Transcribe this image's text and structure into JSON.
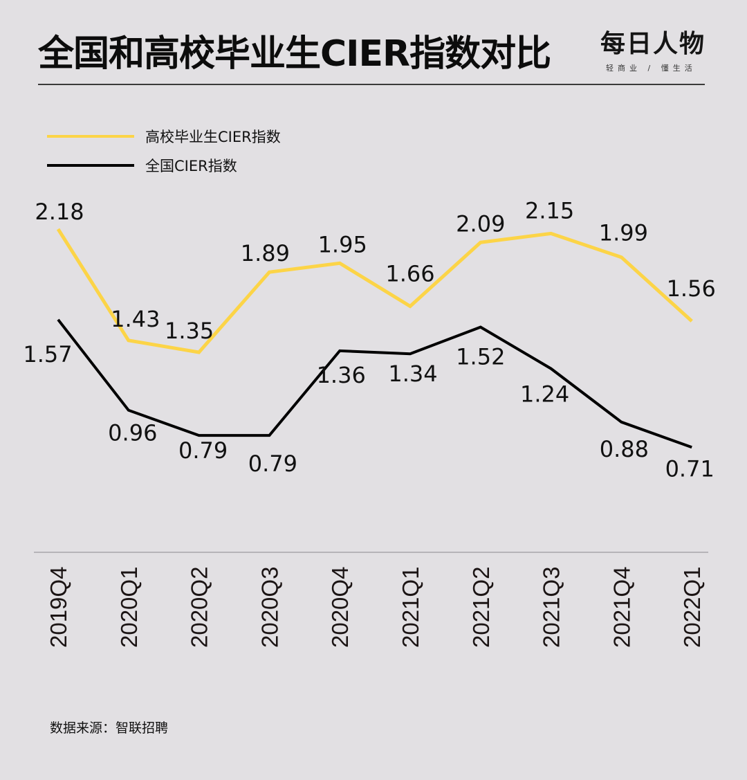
{
  "header": {
    "title": "全国和高校毕业生CIER指数对比",
    "logo_text": "每日人物",
    "logo_tagline": "轻商业 / 懂生活"
  },
  "legend": [
    {
      "label": "高校毕业生CIER指数",
      "color": "#fcd447"
    },
    {
      "label": "全国CIER指数",
      "color": "#000000"
    }
  ],
  "footer": {
    "source": "数据来源：智联招聘"
  },
  "colors": {
    "background": "#e2e0e3",
    "graduates_line": "#fcd447",
    "national_line": "#000000",
    "axis_line": "#a8a6a9",
    "text": "#111111"
  },
  "chart_data": {
    "type": "line",
    "title": "全国和高校毕业生CIER指数对比",
    "xlabel": "",
    "ylabel": "",
    "categories": [
      "2019Q4",
      "2020Q1",
      "2020Q2",
      "2020Q3",
      "2020Q4",
      "2021Q1",
      "2021Q2",
      "2021Q3",
      "2021Q4",
      "2022Q1"
    ],
    "series": [
      {
        "name": "高校毕业生CIER指数",
        "color": "#fcd447",
        "values": [
          2.18,
          1.43,
          1.35,
          1.89,
          1.95,
          1.66,
          2.09,
          2.15,
          1.99,
          1.56
        ]
      },
      {
        "name": "全国CIER指数",
        "color": "#000000",
        "values": [
          1.57,
          0.96,
          0.79,
          0.79,
          1.36,
          1.34,
          1.52,
          1.24,
          0.88,
          0.71
        ]
      }
    ],
    "ylim": [
      0,
      2.3
    ],
    "grid": false,
    "legend_position": "top-left",
    "data_labels": true,
    "x_tick_rotation": -90
  }
}
